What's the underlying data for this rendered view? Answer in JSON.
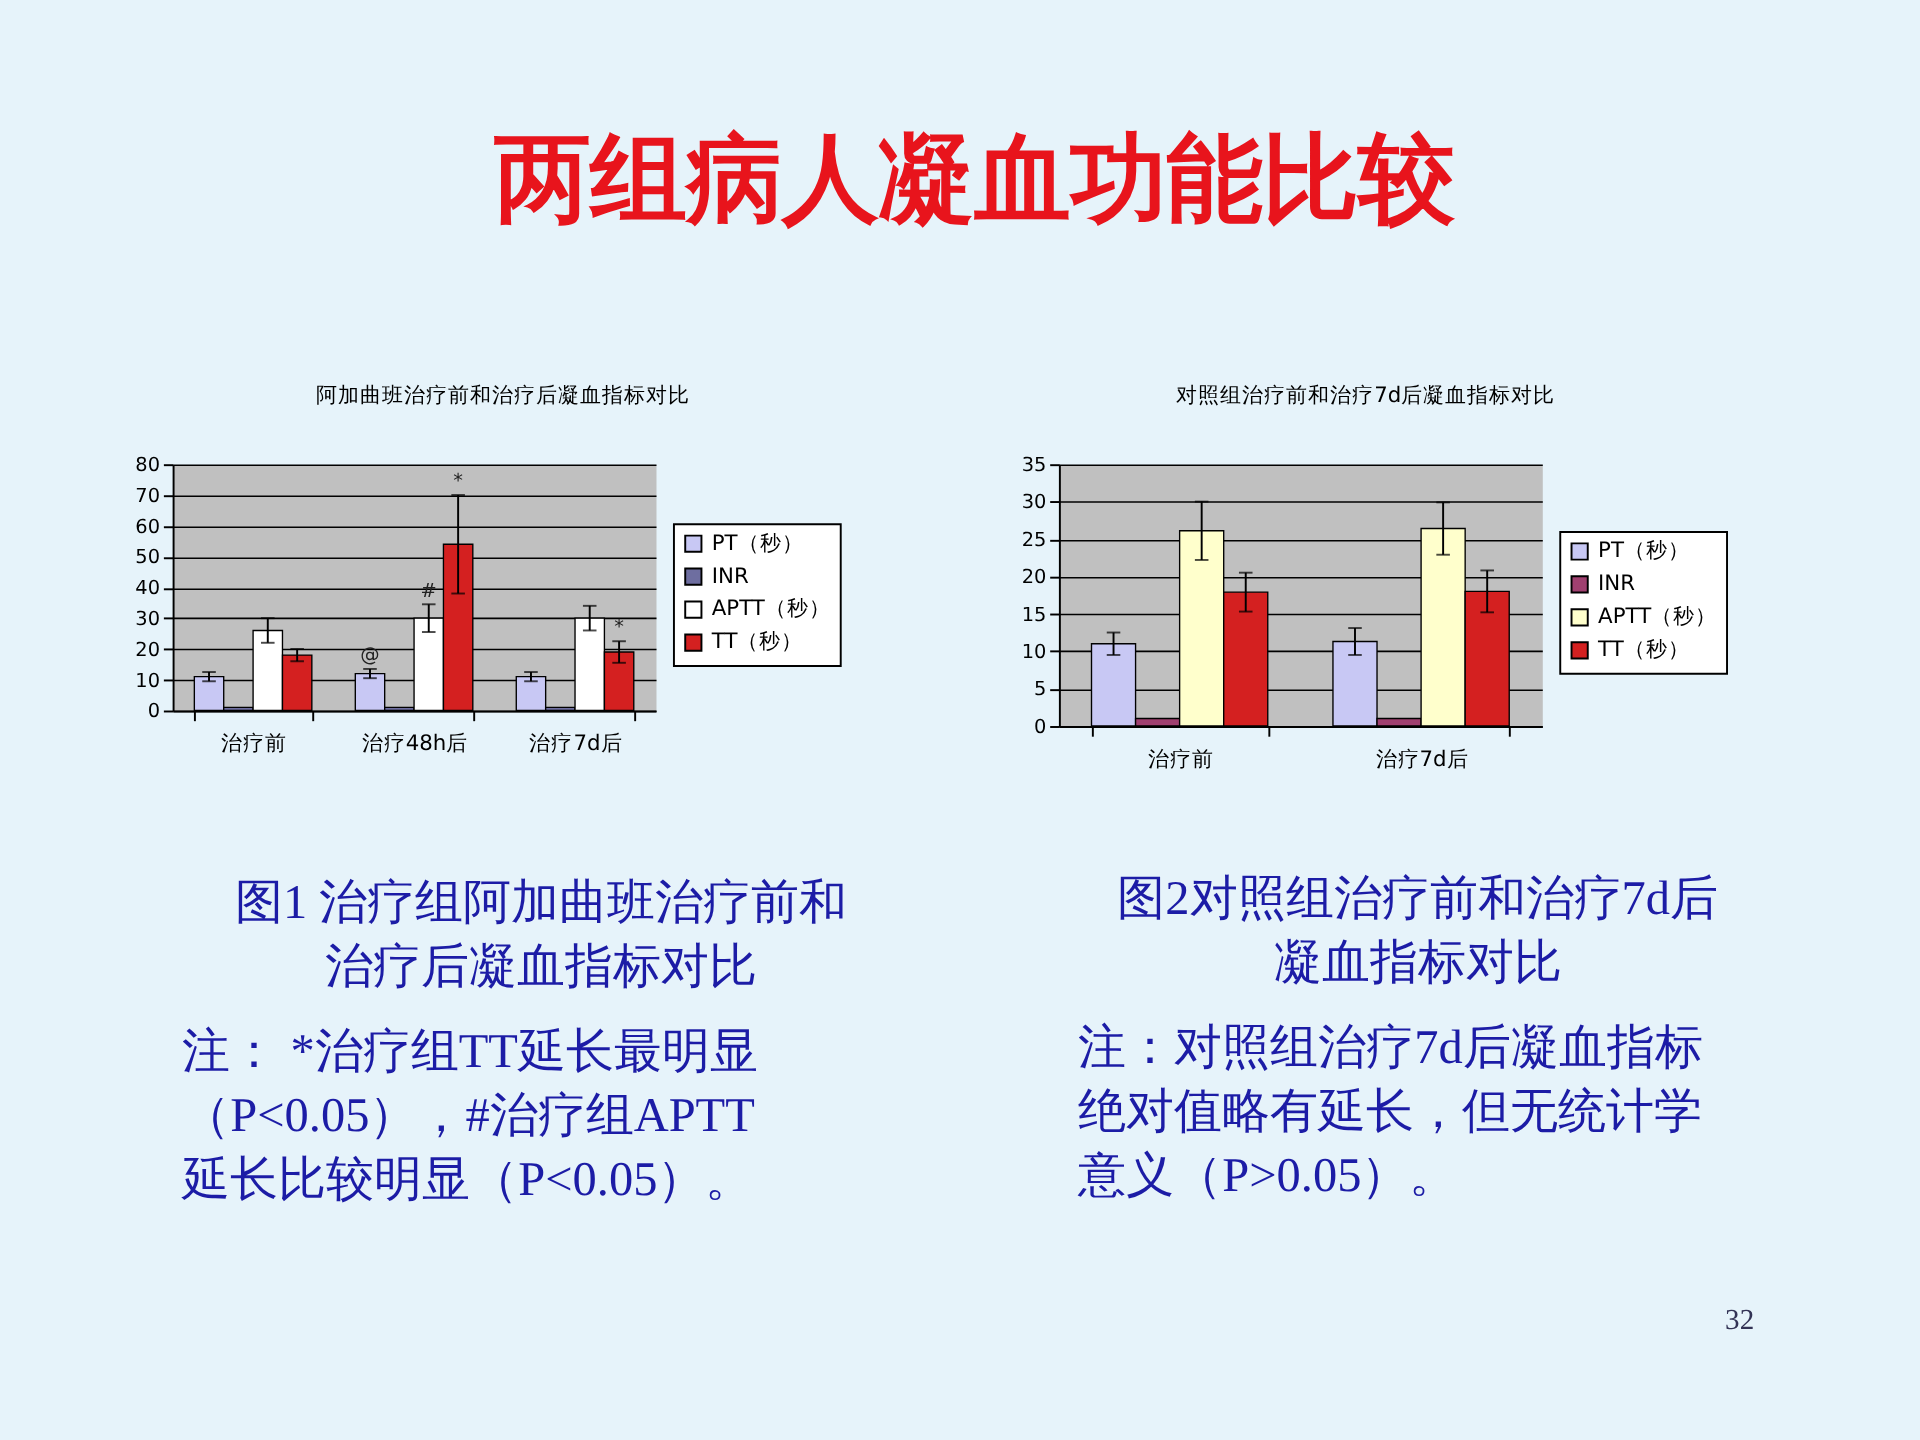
{
  "chart_data": [
    {
      "type": "other",
      "title": "两组病人凝血功能比较"
    },
    {
      "type": "bar",
      "title": "阿加曲班治疗前和治疗后凝血指标对比",
      "categories": [
        "治疗前",
        "治疗48h后",
        "治疗7d后"
      ],
      "series": [
        {
          "name": "PT（秒）",
          "color": "#c8c8f4",
          "values": [
            11,
            12,
            11
          ],
          "errors": [
            1.5,
            1.5,
            1.5
          ],
          "value_labels": [
            null,
            "@",
            null
          ]
        },
        {
          "name": "INR",
          "color": "#6e6ea0",
          "values": [
            1,
            1,
            1
          ]
        },
        {
          "name": "APTT（秒）",
          "color": "#ffffff",
          "values": [
            26,
            30,
            30
          ],
          "errors": [
            4,
            4.5,
            4
          ],
          "value_labels": [
            null,
            "#",
            null
          ]
        },
        {
          "name": "TT（秒）",
          "color": "#d42020",
          "values": [
            18,
            54,
            19
          ],
          "errors": [
            2,
            16,
            3.5
          ],
          "value_labels": [
            null,
            "*",
            "*"
          ]
        }
      ],
      "ylim": [
        0,
        80
      ],
      "yticks": [
        0,
        10,
        20,
        30,
        40,
        50,
        60,
        70,
        80
      ],
      "grid": "y",
      "legend": "right",
      "annotations": [
        "图1 治疗组阿加曲班治疗前和治疗后凝血指标对比",
        "注： *治疗组TT延长最明显（P<0.05），#治疗组APTT延长比较明显（P<0.05）。"
      ]
    },
    {
      "type": "bar",
      "title": "对照组治疗前和治疗7d后凝血指标对比",
      "categories": [
        "治疗前",
        "治疗7d后"
      ],
      "series": [
        {
          "name": "PT（秒）",
          "color": "#c8c8f4",
          "values": [
            11,
            11.3
          ],
          "errors": [
            1.5,
            1.8
          ]
        },
        {
          "name": "INR",
          "color": "#a04070",
          "values": [
            1,
            1
          ]
        },
        {
          "name": "APTT（秒）",
          "color": "#ffffcc",
          "values": [
            26.1,
            26.4
          ],
          "errors": [
            3.9,
            3.5
          ]
        },
        {
          "name": "TT（秒）",
          "color": "#d42020",
          "values": [
            17.9,
            18
          ],
          "errors": [
            2.6,
            2.8
          ]
        }
      ],
      "ylim": [
        0,
        35
      ],
      "yticks": [
        0,
        5,
        10,
        15,
        20,
        25,
        30,
        35
      ],
      "grid": "y",
      "legend": "right",
      "annotations": [
        "图2对照组治疗前和治疗7d后凝血指标对比",
        "注：对照组治疗7d后凝血指标绝对值略有延长，但无统计学意义（P>0.05）。",
        "32"
      ]
    }
  ]
}
